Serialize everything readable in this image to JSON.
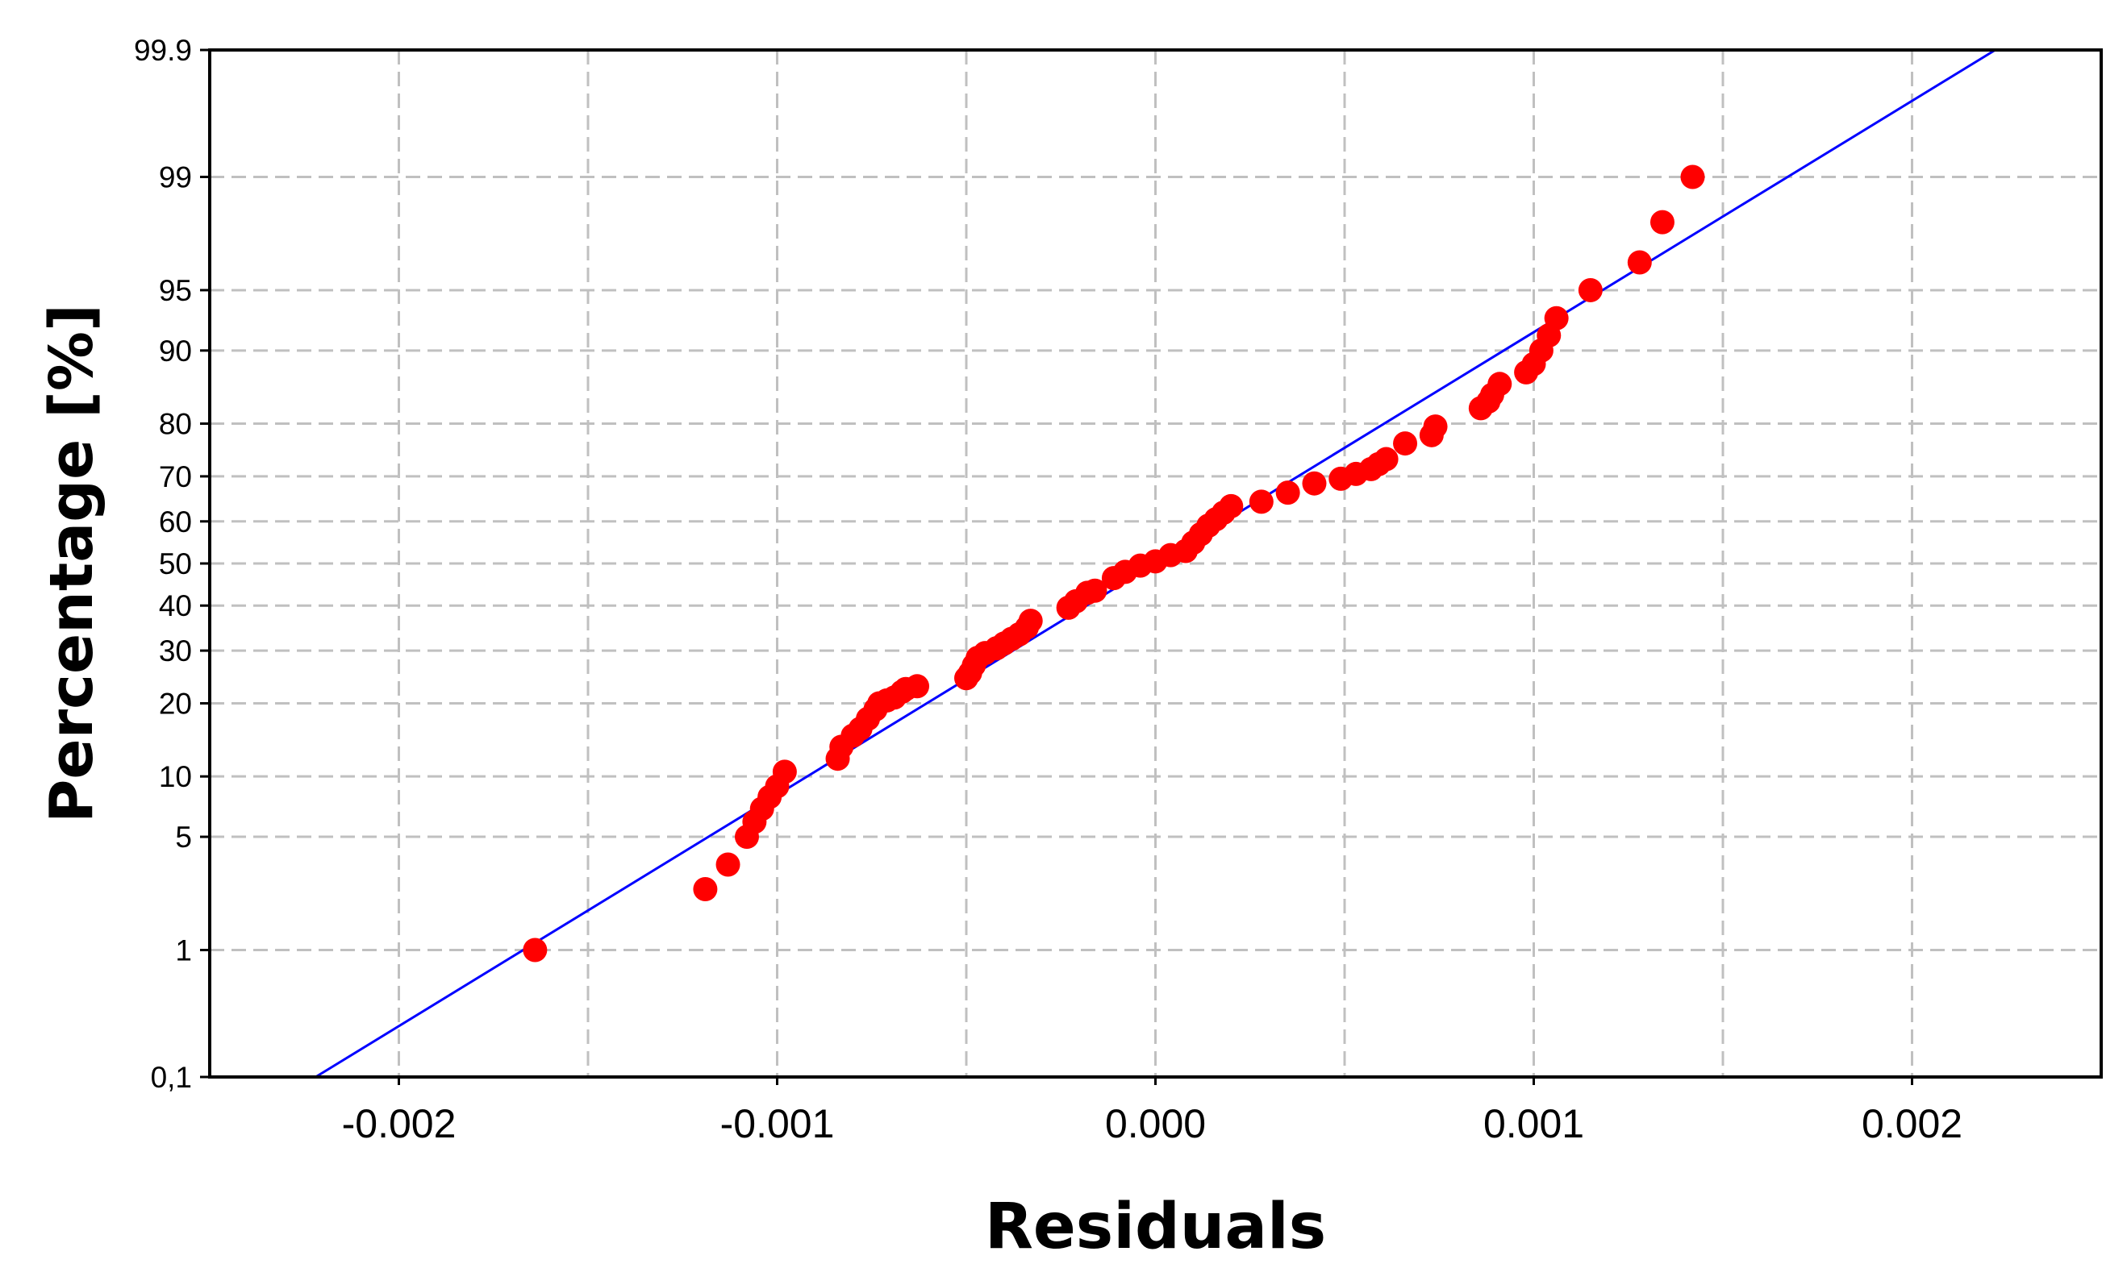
{
  "chart_data": {
    "type": "scatter",
    "title": "",
    "xlabel": "Residuals",
    "ylabel": "Percentage [%]",
    "xlim": [
      -0.0025,
      0.0025
    ],
    "ylim": [
      0.1,
      99.9
    ],
    "y_scale": "normal-probability",
    "grid": true,
    "legend": "none",
    "x_ticks": [
      {
        "value": -0.002,
        "label": "-0.002"
      },
      {
        "value": -0.001,
        "label": "-0.001"
      },
      {
        "value": 0.0,
        "label": "0.000"
      },
      {
        "value": 0.001,
        "label": "0.001"
      },
      {
        "value": 0.002,
        "label": "0.002"
      }
    ],
    "x_minor_grid": [
      -0.0015,
      -0.0005,
      0.0005,
      0.0015
    ],
    "y_ticks": [
      {
        "value": 0.1,
        "label": "0,1"
      },
      {
        "value": 1,
        "label": "1"
      },
      {
        "value": 5,
        "label": "5"
      },
      {
        "value": 10,
        "label": "10"
      },
      {
        "value": 20,
        "label": "20"
      },
      {
        "value": 30,
        "label": "30"
      },
      {
        "value": 40,
        "label": "40"
      },
      {
        "value": 50,
        "label": "50"
      },
      {
        "value": 60,
        "label": "60"
      },
      {
        "value": 70,
        "label": "70"
      },
      {
        "value": 80,
        "label": "80"
      },
      {
        "value": 90,
        "label": "90"
      },
      {
        "value": 95,
        "label": "95"
      },
      {
        "value": 99,
        "label": "99"
      },
      {
        "value": 99.9,
        "label": "99.9"
      }
    ],
    "colors": {
      "points": "#ff0000",
      "line": "#0000ff",
      "grid": "#c0c0c0",
      "axes": "#000000"
    },
    "fit_line": {
      "x": [
        -0.00222,
        0.00222
      ],
      "y": [
        0.1,
        99.9
      ]
    },
    "points": {
      "x": [
        -0.00164,
        -0.00119,
        -0.00113,
        -0.00108,
        -0.00106,
        -0.00104,
        -0.00102,
        -0.001,
        -0.00098,
        -0.00084,
        -0.00083,
        -0.0008,
        -0.00078,
        -0.00076,
        -0.00074,
        -0.00073,
        -0.00071,
        -0.00069,
        -0.00067,
        -0.00066,
        -0.00063,
        -0.0005,
        -0.00049,
        -0.00048,
        -0.00047,
        -0.00045,
        -0.00042,
        -0.0004,
        -0.00038,
        -0.00036,
        -0.00034,
        -0.00033,
        -0.00023,
        -0.00021,
        -0.00018,
        -0.00016,
        -0.00011,
        -8e-05,
        -4e-05,
        0.0,
        4e-05,
        8e-05,
        0.0001,
        0.00012,
        0.00014,
        0.00016,
        0.00018,
        0.0002,
        0.00028,
        0.00035,
        0.00042,
        0.00049,
        0.00053,
        0.00057,
        0.00059,
        0.00061,
        0.00066,
        0.00073,
        0.00074,
        0.00086,
        0.00088,
        0.00089,
        0.00091,
        0.00098,
        0.001,
        0.00102,
        0.00104,
        0.00106,
        0.00115,
        0.00128,
        0.00134,
        0.00142
      ],
      "y": [
        1.0,
        2.5,
        3.5,
        5.0,
        6.0,
        7.0,
        8.0,
        9.0,
        10.5,
        12.0,
        13.5,
        15.0,
        16.0,
        17.5,
        19.0,
        20.0,
        20.5,
        21.0,
        22.0,
        22.5,
        23.0,
        24.5,
        25.5,
        27.0,
        28.5,
        29.5,
        30.5,
        31.5,
        32.5,
        33.5,
        35.0,
        36.5,
        39.5,
        41.0,
        43.0,
        43.5,
        46.5,
        48.0,
        49.5,
        50.5,
        52.0,
        53.0,
        55.0,
        57.0,
        59.0,
        60.5,
        62.0,
        63.5,
        64.5,
        66.5,
        68.5,
        69.5,
        70.5,
        71.5,
        72.5,
        73.5,
        76.5,
        78.0,
        79.5,
        82.5,
        83.5,
        84.5,
        86.0,
        87.5,
        88.5,
        90.0,
        91.5,
        93.0,
        95.0,
        96.5,
        98.0,
        99.0
      ]
    }
  }
}
